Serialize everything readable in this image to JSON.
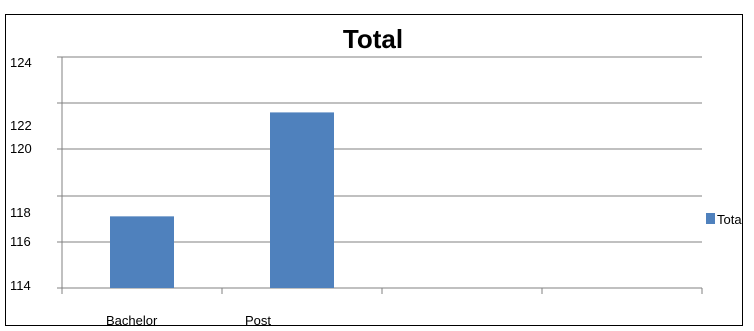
{
  "chart_data": {
    "type": "bar",
    "title": "Total",
    "categories": [
      "Bachelor",
      "Post",
      "",
      ""
    ],
    "series": [
      {
        "name": "Total",
        "values": [
          117.7,
          122.4,
          null,
          null
        ]
      }
    ],
    "y_tick_labels": [
      "114",
      "116",
      "118",
      "120",
      "122",
      "124"
    ],
    "legend": {
      "position": "right",
      "label": "Tota"
    },
    "grid": true,
    "colors": {
      "bar": "#4f81bd",
      "grid": "#808080",
      "axis": "#808080"
    }
  }
}
